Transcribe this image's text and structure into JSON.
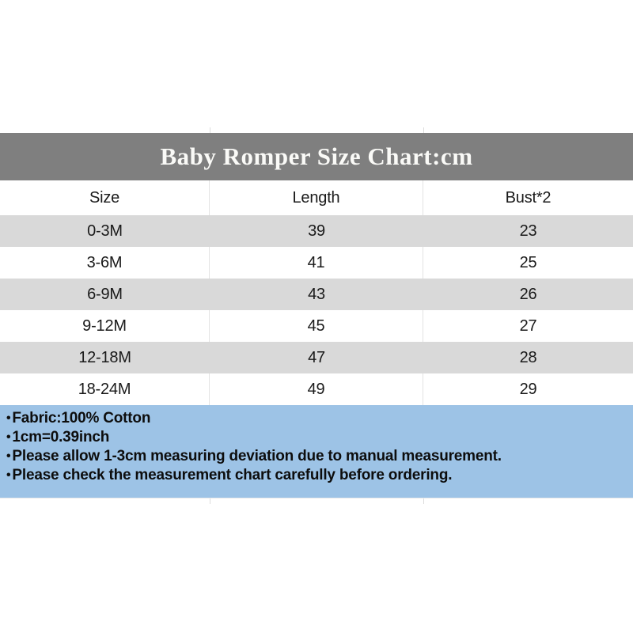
{
  "chart_data": {
    "type": "table",
    "title": "Baby Romper Size Chart:cm",
    "columns": [
      "Size",
      "Length",
      "Bust*2"
    ],
    "rows": [
      [
        "0-3M",
        "39",
        "23"
      ],
      [
        "3-6M",
        "41",
        "25"
      ],
      [
        "6-9M",
        "43",
        "26"
      ],
      [
        "9-12M",
        "45",
        "27"
      ],
      [
        "12-18M",
        "47",
        "28"
      ],
      [
        "18-24M",
        "49",
        "29"
      ]
    ]
  },
  "notes": {
    "bullet": "•",
    "items": [
      "Fabric:100% Cotton",
      "1cm=0.39inch",
      "Please allow 1-3cm measuring deviation due to manual measurement.",
      "Please check the measurement chart carefully before ordering."
    ]
  },
  "colors": {
    "title_bar": "#7f7f7f",
    "title_text": "#fafaf7",
    "row_alt": "#d9d9d9",
    "notes_background": "#9dc3e6",
    "body_text": "#1a1a1a"
  }
}
